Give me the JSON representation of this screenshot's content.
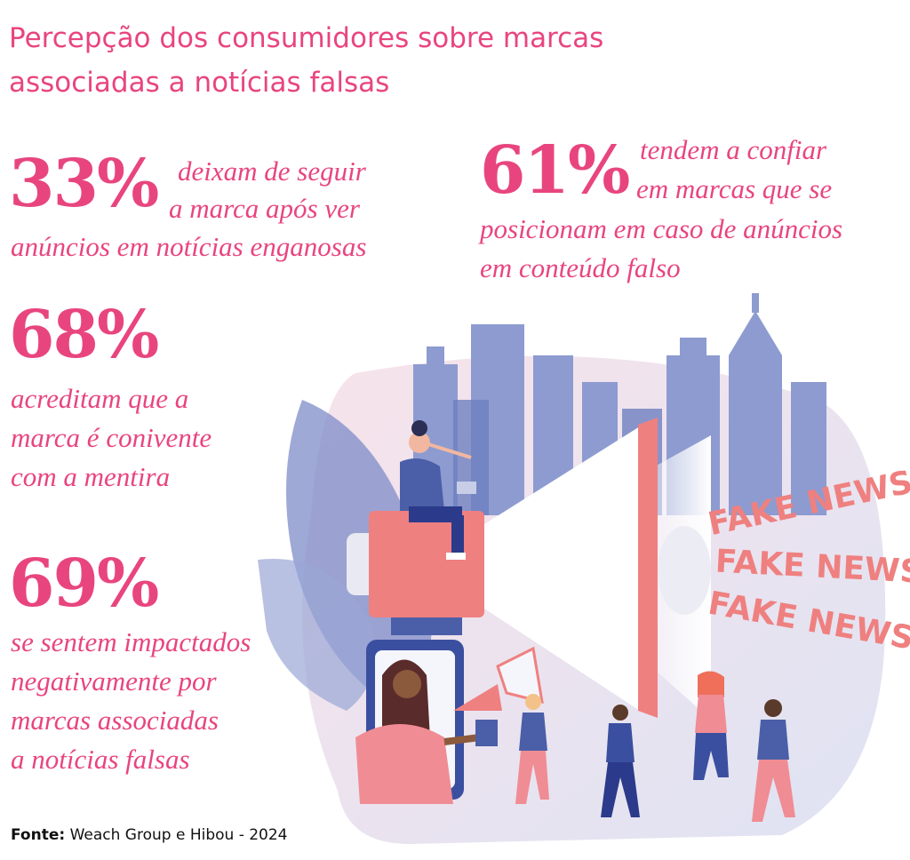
{
  "title": "Percepção dos consumidores sobre marcas associadas a notícias falsas",
  "stats": [
    {
      "value": "33%",
      "line1": "deixam de seguir",
      "line2": "a marca após ver",
      "line3": "anúncios em notícias enganosas"
    },
    {
      "value": "61%",
      "line1": "tendem a confiar",
      "line2": "em marcas que se",
      "line3": "posicionam em caso de anúncios",
      "line4": "em conteúdo falso"
    },
    {
      "value": "68%",
      "line1": "acreditam que a",
      "line2": "marca é conivente",
      "line3": "com a mentira"
    },
    {
      "value": "69%",
      "line1": "se sentem impactados",
      "line2": "negativamente por",
      "line3": "marcas associadas",
      "line4": "a notícias falsas"
    }
  ],
  "illustration": {
    "fake_news_texts": [
      "FAKE NEWS",
      "FAKE NEWS",
      "FAKE NEWS"
    ],
    "colors": {
      "pink": "#e8457f",
      "coral": "#ef8080",
      "blue": "#4b5fa8",
      "lightblue": "#8d9bd0"
    }
  },
  "source": {
    "label": "Fonte:",
    "text": "Weach Group e Hibou - 2024"
  }
}
